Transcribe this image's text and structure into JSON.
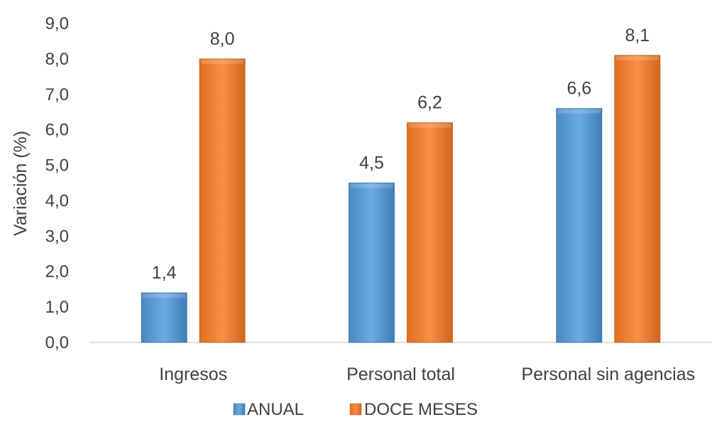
{
  "chart_data": {
    "type": "bar",
    "categories": [
      "Ingresos",
      "Personal total",
      "Personal sin agencias"
    ],
    "series": [
      {
        "name": "ANUAL",
        "values": [
          1.4,
          4.5,
          6.6
        ],
        "labels": [
          "1,4",
          "4,5",
          "6,6"
        ],
        "color": "#5B9BD5"
      },
      {
        "name": "DOCE MESES",
        "values": [
          8.0,
          6.2,
          8.1
        ],
        "labels": [
          "8,0",
          "6,2",
          "8,1"
        ],
        "color": "#ED7D31"
      }
    ],
    "ylabel": "Variación (%)",
    "ylim": [
      0,
      9
    ],
    "yticks": [
      {
        "value": 0,
        "label": "0,0"
      },
      {
        "value": 1,
        "label": "1,0"
      },
      {
        "value": 2,
        "label": "2,0"
      },
      {
        "value": 3,
        "label": "3,0"
      },
      {
        "value": 4,
        "label": "4,0"
      },
      {
        "value": 5,
        "label": "5,0"
      },
      {
        "value": 6,
        "label": "6,0"
      },
      {
        "value": 7,
        "label": "7,0"
      },
      {
        "value": 8,
        "label": "8,0"
      },
      {
        "value": 9,
        "label": "9,0"
      }
    ],
    "grid": false,
    "legend": "bottom"
  }
}
